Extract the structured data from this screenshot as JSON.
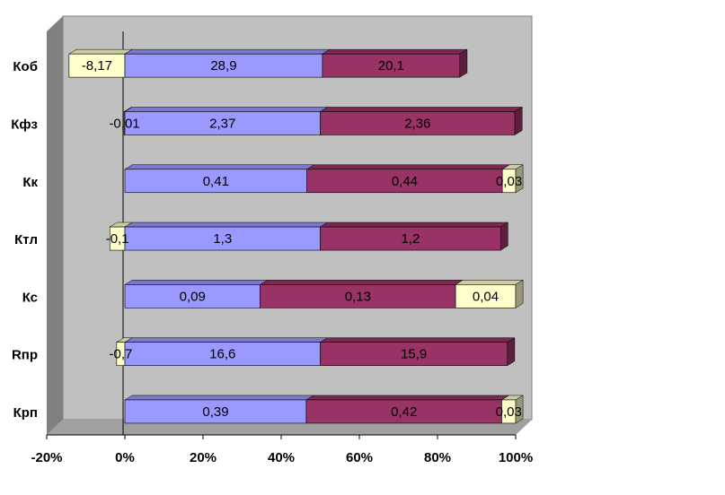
{
  "chart_data": {
    "type": "bar",
    "orientation": "horizontal",
    "stacked": "100%",
    "three_d": true,
    "grid": false,
    "legend": "none",
    "title": "",
    "xlabel": "",
    "ylabel": "",
    "xlim": [
      -20,
      100
    ],
    "x_ticks": [
      "-20%",
      "0%",
      "20%",
      "40%",
      "60%",
      "80%",
      "100%"
    ],
    "categories": [
      "Коб",
      "Кфз",
      "Кк",
      "Ктл",
      "Кс",
      "Rпр",
      "Крп"
    ],
    "segments": [
      [
        {
          "label": "-8,17",
          "value": -8.17,
          "color": "yellow"
        },
        {
          "label": "28,9",
          "value": 28.9,
          "color": "blue"
        },
        {
          "label": "20,1",
          "value": 20.1,
          "color": "maroon"
        }
      ],
      [
        {
          "label": "-0,01",
          "value": -0.01,
          "color": "yellow"
        },
        {
          "label": "2,37",
          "value": 2.37,
          "color": "blue"
        },
        {
          "label": "2,36",
          "value": 2.36,
          "color": "maroon"
        }
      ],
      [
        {
          "label": "0,41",
          "value": 0.41,
          "color": "blue"
        },
        {
          "label": "0,44",
          "value": 0.44,
          "color": "maroon"
        },
        {
          "label": "0,03",
          "value": 0.03,
          "color": "yellow"
        }
      ],
      [
        {
          "label": "-0,1",
          "value": -0.1,
          "color": "yellow"
        },
        {
          "label": "1,3",
          "value": 1.3,
          "color": "blue"
        },
        {
          "label": "1,2",
          "value": 1.2,
          "color": "maroon"
        }
      ],
      [
        {
          "label": "0,09",
          "value": 0.09,
          "color": "blue"
        },
        {
          "label": "0,13",
          "value": 0.13,
          "color": "maroon"
        },
        {
          "label": "0,04",
          "value": 0.04,
          "color": "yellow"
        }
      ],
      [
        {
          "label": "-0,7",
          "value": -0.7,
          "color": "yellow"
        },
        {
          "label": "16,6",
          "value": 16.6,
          "color": "blue"
        },
        {
          "label": "15,9",
          "value": 15.9,
          "color": "maroon"
        }
      ],
      [
        {
          "label": "0,39",
          "value": 0.39,
          "color": "blue"
        },
        {
          "label": "0,42",
          "value": 0.42,
          "color": "maroon"
        },
        {
          "label": "0,03",
          "value": 0.03,
          "color": "yellow"
        }
      ]
    ],
    "colors": {
      "blue": {
        "front": "#9999ff",
        "top": "#7a7acc",
        "side": "#5c5c99"
      },
      "maroon": {
        "front": "#993366",
        "top": "#7a2952",
        "side": "#5c1f3d"
      },
      "yellow": {
        "front": "#ffffcc",
        "top": "#cccca3",
        "side": "#99997a"
      },
      "wall": "#c0c0c0",
      "side_wall": "#808080",
      "floor": "#a0a0a0"
    }
  }
}
